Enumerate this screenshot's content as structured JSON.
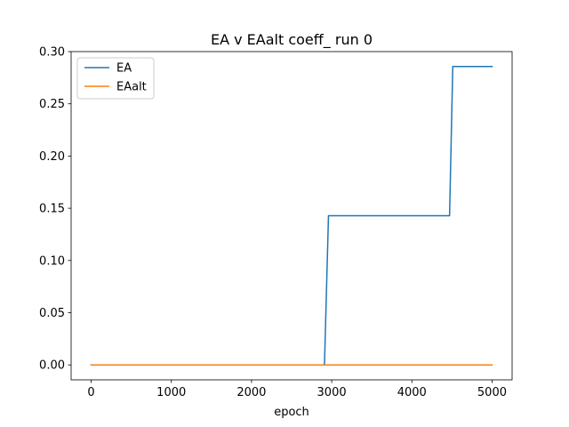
{
  "chart_data": {
    "type": "line",
    "title": "EA v EAalt coeff_ run 0",
    "xlabel": "epoch",
    "ylabel": "",
    "xlim": [
      -250,
      5250
    ],
    "ylim": [
      -0.0143,
      0.3
    ],
    "xticks": [
      0,
      1000,
      2000,
      3000,
      4000,
      5000
    ],
    "xtick_labels": [
      "0",
      "1000",
      "2000",
      "3000",
      "4000",
      "5000"
    ],
    "yticks": [
      0.0,
      0.05,
      0.1,
      0.15,
      0.2,
      0.25,
      0.3
    ],
    "ytick_labels": [
      "0.00",
      "0.05",
      "0.10",
      "0.15",
      "0.20",
      "0.25",
      "0.30"
    ],
    "grid": false,
    "legend_position": "top-left",
    "series": [
      {
        "name": "EA",
        "color": "#1f77b4",
        "x": [
          0,
          2910,
          2960,
          4470,
          4510,
          5000
        ],
        "y": [
          0.0,
          0.0,
          0.1429,
          0.1429,
          0.2857,
          0.2857
        ]
      },
      {
        "name": "EAalt",
        "color": "#ff7f0e",
        "x": [
          0,
          5000
        ],
        "y": [
          0.0,
          0.0
        ]
      }
    ]
  }
}
